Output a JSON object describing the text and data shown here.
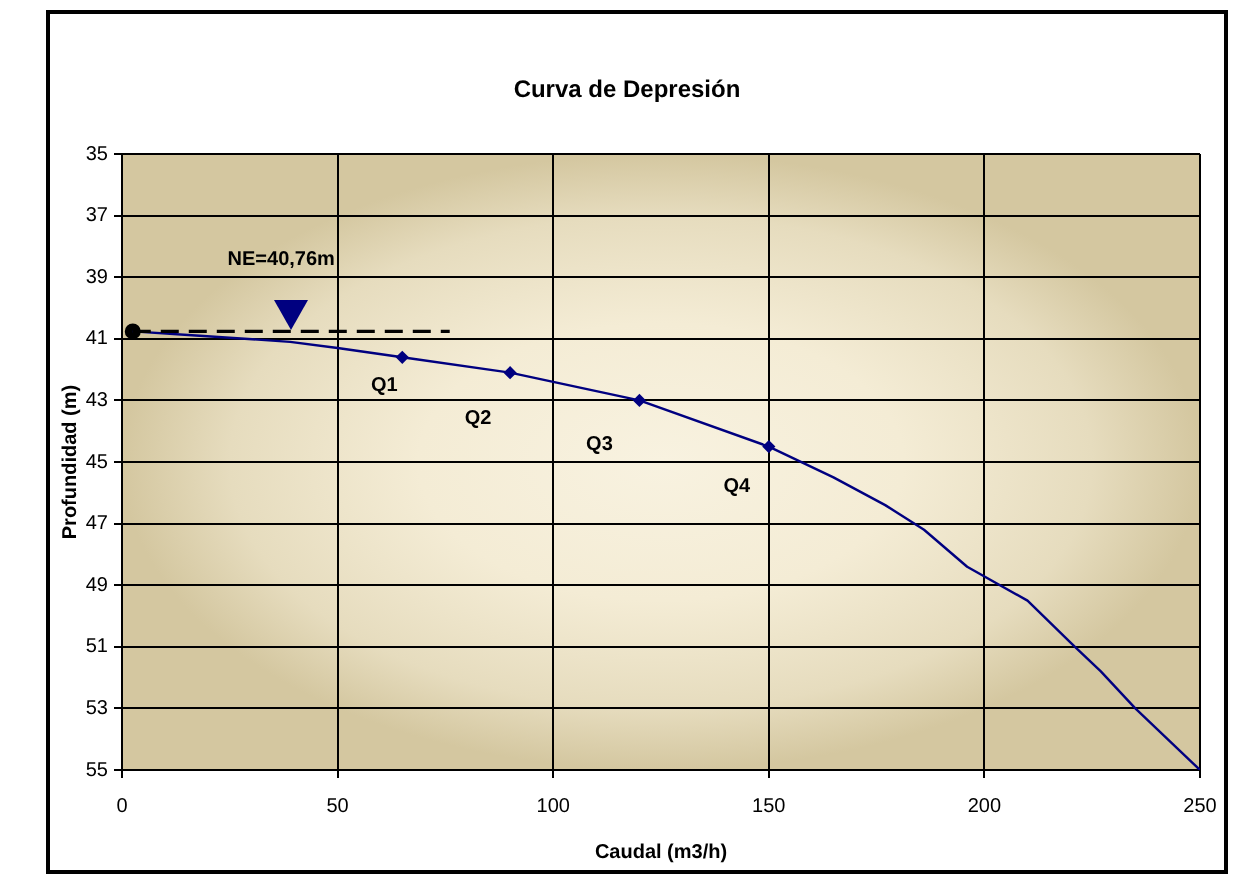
{
  "chart_data": {
    "type": "line",
    "title": "Curva de Depresión",
    "xlabel": "Caudal (m3/h)",
    "ylabel": "Profundidad (m)",
    "xlim": [
      0,
      250
    ],
    "xticks": [
      0,
      50,
      100,
      150,
      200,
      250
    ],
    "ylim": [
      55,
      35
    ],
    "yticks": [
      35,
      37,
      39,
      41,
      43,
      45,
      47,
      49,
      51,
      53,
      55
    ],
    "grid": true,
    "series": [
      {
        "type": "scatter",
        "color": "#000000",
        "marker": "circle",
        "x": [
          2.5
        ],
        "values": [
          40.76
        ]
      },
      {
        "type": "line",
        "color": "#000080",
        "marker": "none",
        "x": [
          2.5,
          18,
          39,
          50,
          65,
          90,
          120,
          150,
          165,
          177,
          186,
          196,
          210,
          221,
          227,
          235,
          250
        ],
        "values": [
          40.76,
          40.9,
          41.1,
          41.3,
          41.6,
          42.1,
          43.0,
          44.5,
          45.5,
          46.4,
          47.2,
          48.4,
          49.5,
          51.0,
          51.8,
          53.0,
          55.0
        ]
      },
      {
        "type": "scatter",
        "color": "#000080",
        "marker": "diamond",
        "x": [
          65,
          90,
          120,
          150
        ],
        "values": [
          41.6,
          42.1,
          43.0,
          44.5
        ]
      },
      {
        "type": "line",
        "color": "#000000",
        "marker": "none",
        "line_style": "dashed",
        "x": [
          2.5,
          76
        ],
        "values": [
          40.76,
          40.76
        ]
      }
    ],
    "annotations": [
      "NE=40,76m",
      {
        "text": "Q1",
        "x": 65,
        "y": 41.6
      },
      {
        "text": "Q2",
        "x": 90,
        "y": 42.1
      },
      {
        "text": "Q3",
        "x": 120,
        "y": 43.0
      },
      {
        "text": "Q4",
        "x": 150,
        "y": 44.5
      }
    ]
  }
}
